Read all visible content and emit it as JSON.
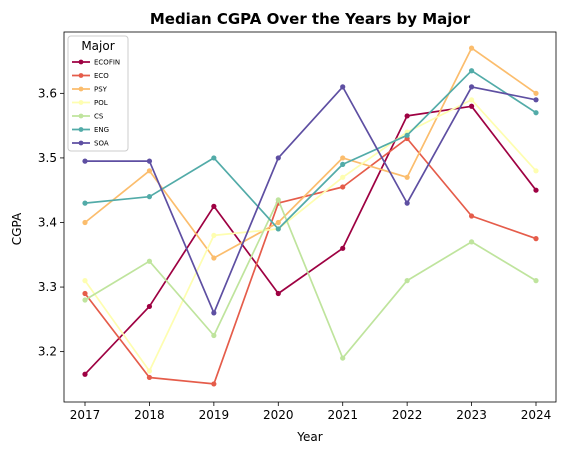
{
  "chart_data": {
    "type": "line",
    "title": "Median CGPA Over the Years by Major",
    "xlabel": "Year",
    "ylabel": "CGPA",
    "x": [
      "2017",
      "2018",
      "2019",
      "2020",
      "2021",
      "2022",
      "2023",
      "2024"
    ],
    "ylim": [
      3.122,
      3.695
    ],
    "yticks": [
      "3.2",
      "3.3",
      "3.4",
      "3.5",
      "3.6"
    ],
    "grid": false,
    "legend": {
      "title": "Major",
      "position": "top-left"
    },
    "series": [
      {
        "name": "ECOFIN",
        "color": "#9e0142",
        "values": [
          3.165,
          3.27,
          3.425,
          3.29,
          3.36,
          3.565,
          3.58,
          3.45
        ]
      },
      {
        "name": "ECO",
        "color": "#e55c4a",
        "values": [
          3.29,
          3.16,
          3.15,
          3.43,
          3.455,
          3.53,
          3.41,
          3.375
        ]
      },
      {
        "name": "PSY",
        "color": "#fbbd6d",
        "values": [
          3.4,
          3.48,
          3.345,
          3.4,
          3.5,
          3.47,
          3.67,
          3.6
        ]
      },
      {
        "name": "POL",
        "color": "#fefeb0",
        "values": [
          3.31,
          3.17,
          3.38,
          3.39,
          3.47,
          3.54,
          3.59,
          3.48
        ]
      },
      {
        "name": "CS",
        "color": "#bfe49d",
        "values": [
          3.28,
          3.34,
          3.225,
          3.435,
          3.19,
          3.31,
          3.37,
          3.31
        ]
      },
      {
        "name": "ENG",
        "color": "#52aba8",
        "values": [
          3.43,
          3.44,
          3.5,
          3.39,
          3.49,
          3.535,
          3.635,
          3.57
        ]
      },
      {
        "name": "SOA",
        "color": "#5e4fa2",
        "values": [
          3.495,
          3.495,
          3.26,
          3.5,
          3.61,
          3.43,
          3.61,
          3.59
        ]
      }
    ]
  }
}
